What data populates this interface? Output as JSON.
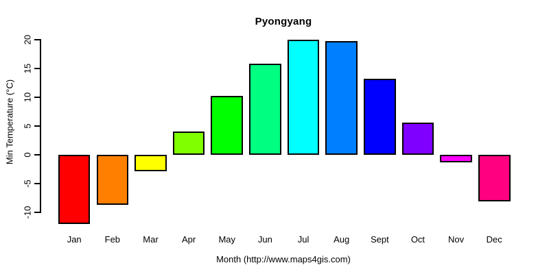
{
  "chart_data": {
    "type": "bar",
    "title": "Pyongyang",
    "xlabel": "Month (http://www.maps4gis.com)",
    "ylabel": "Min Temperature (°C)",
    "categories": [
      "Jan",
      "Feb",
      "Mar",
      "Apr",
      "May",
      "Jun",
      "Jul",
      "Aug",
      "Sept",
      "Oct",
      "Nov",
      "Dec"
    ],
    "values": [
      -12.0,
      -8.7,
      -2.8,
      4.1,
      10.2,
      15.8,
      20.0,
      19.8,
      13.2,
      5.6,
      -1.3,
      -8.1
    ],
    "bar_colors": [
      "#FF0000",
      "#FF8000",
      "#FFFF00",
      "#80FF00",
      "#00FF00",
      "#00FF80",
      "#00FFFF",
      "#0080FF",
      "#0000FF",
      "#8000FF",
      "#FF00FF",
      "#FF0080"
    ],
    "yticks": [
      20,
      15,
      10,
      5,
      0,
      -5,
      -10
    ],
    "ylim": [
      -12.5,
      20.5
    ],
    "grid": false,
    "legend": "none",
    "background_color": "#FFFFFF",
    "axis_color": "#000000",
    "bar_border_color": "#000000"
  }
}
